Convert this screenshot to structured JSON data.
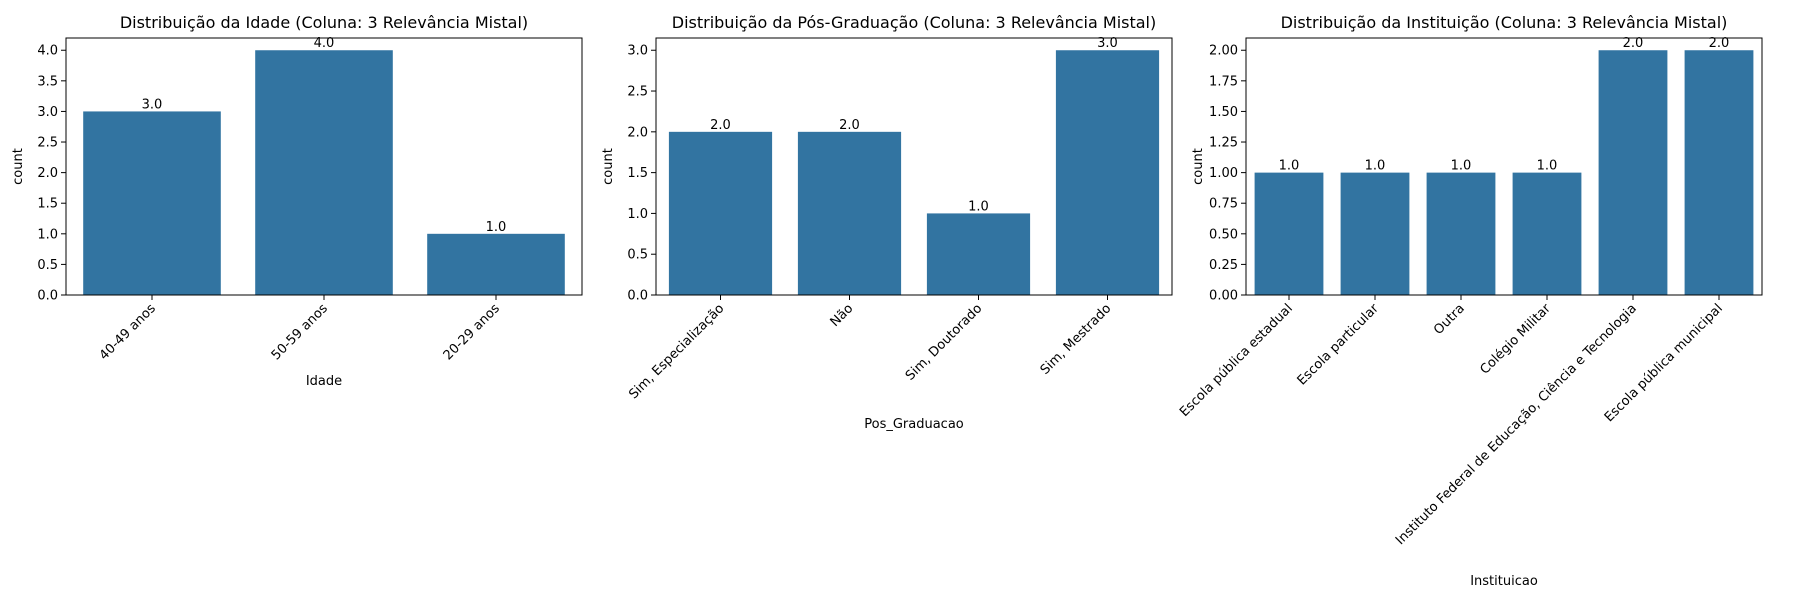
{
  "chart_data": [
    {
      "type": "bar",
      "title": "Distribuição da Idade (Coluna: 3 Relevância Mistal)",
      "xlabel": "Idade",
      "ylabel": "count",
      "categories": [
        "40-49 anos",
        "50-59 anos",
        "20-29 anos"
      ],
      "values": [
        3.0,
        4.0,
        1.0
      ],
      "data_labels": [
        "3.0",
        "4.0",
        "1.0"
      ],
      "ylim": [
        0,
        4.2
      ],
      "yticks": [
        0.0,
        0.5,
        1.0,
        1.5,
        2.0,
        2.5,
        3.0,
        3.5,
        4.0
      ],
      "ytick_labels": [
        "0.0",
        "0.5",
        "1.0",
        "1.5",
        "2.0",
        "2.5",
        "3.0",
        "3.5",
        "4.0"
      ],
      "bar_color": "#3274a1",
      "grid": false
    },
    {
      "type": "bar",
      "title": "Distribuição da Pós-Graduação (Coluna: 3 Relevância Mistal)",
      "xlabel": "Pos_Graduacao",
      "ylabel": "count",
      "categories": [
        "Sim, Especialização",
        "Não",
        "Sim, Doutorado",
        "Sim, Mestrado"
      ],
      "values": [
        2.0,
        2.0,
        1.0,
        3.0
      ],
      "data_labels": [
        "2.0",
        "2.0",
        "1.0",
        "3.0"
      ],
      "ylim": [
        0,
        3.15
      ],
      "yticks": [
        0.0,
        0.5,
        1.0,
        1.5,
        2.0,
        2.5,
        3.0
      ],
      "ytick_labels": [
        "0.0",
        "0.5",
        "1.0",
        "1.5",
        "2.0",
        "2.5",
        "3.0"
      ],
      "bar_color": "#3274a1",
      "grid": false
    },
    {
      "type": "bar",
      "title": "Distribuição da Instituição (Coluna: 3 Relevância Mistal)",
      "xlabel": "Instituicao",
      "ylabel": "count",
      "categories": [
        "Escola pública estadual",
        "Escola particular",
        "Outra",
        "Colégio Militar",
        "Instituto Federal de Educação, Ciência e Tecnologia",
        "Escola pública municipal"
      ],
      "values": [
        1.0,
        1.0,
        1.0,
        1.0,
        2.0,
        2.0
      ],
      "data_labels": [
        "1.0",
        "1.0",
        "1.0",
        "1.0",
        "2.0",
        "2.0"
      ],
      "ylim": [
        0,
        2.1
      ],
      "yticks": [
        0.0,
        0.25,
        0.5,
        0.75,
        1.0,
        1.25,
        1.5,
        1.75,
        2.0
      ],
      "ytick_labels": [
        "0.00",
        "0.25",
        "0.50",
        "0.75",
        "1.00",
        "1.25",
        "1.50",
        "1.75",
        "2.00"
      ],
      "bar_color": "#3274a1",
      "grid": false
    }
  ]
}
